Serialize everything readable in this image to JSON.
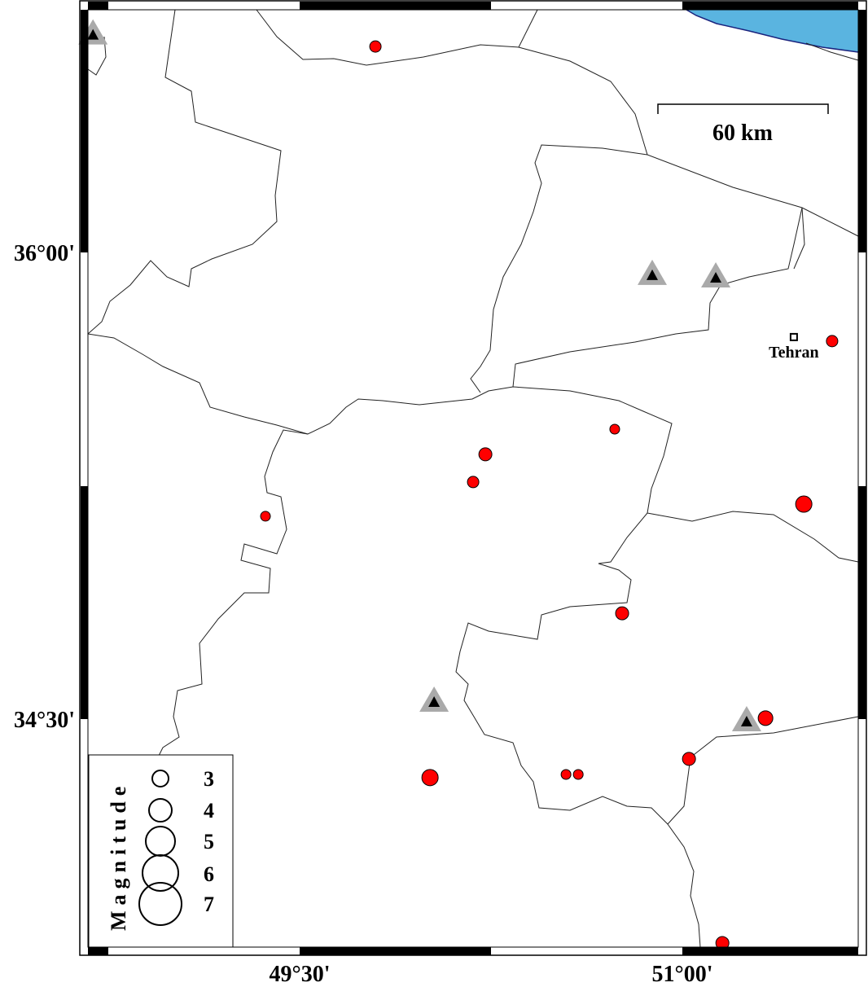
{
  "map": {
    "frame": {
      "lon_ticks": [
        {
          "lon": 49.5,
          "label": "49°30'"
        },
        {
          "lon": 51.0,
          "label": "51°00'"
        }
      ],
      "lat_ticks": [
        {
          "lat": 36.0,
          "label": "36°00'"
        },
        {
          "lat": 34.5,
          "label": "34°30'"
        }
      ]
    },
    "scale_bar": {
      "label": "60 km",
      "length_km": 60
    },
    "city": {
      "name": "Tehran",
      "lon": 51.437,
      "lat": 35.728
    },
    "colors": {
      "event": "#ff0000",
      "station_outer": "#aaaaaa",
      "station_inner": "#000000",
      "water": "#5ab4e0",
      "coast": "#1a237e"
    },
    "events": [
      {
        "lon": 49.797,
        "lat": 36.662,
        "mag": 2.25
      },
      {
        "lon": 51.587,
        "lat": 35.715,
        "mag": 2.25
      },
      {
        "lon": 50.735,
        "lat": 35.432,
        "mag": 2.0
      },
      {
        "lon": 50.228,
        "lat": 35.351,
        "mag": 2.5
      },
      {
        "lon": 50.18,
        "lat": 35.262,
        "mag": 2.25
      },
      {
        "lon": 49.366,
        "lat": 35.152,
        "mag": 2.0
      },
      {
        "lon": 51.476,
        "lat": 35.191,
        "mag": 3.0
      },
      {
        "lon": 50.764,
        "lat": 34.84,
        "mag": 2.5
      },
      {
        "lon": 50.011,
        "lat": 34.312,
        "mag": 3.0
      },
      {
        "lon": 50.544,
        "lat": 34.322,
        "mag": 2.0
      },
      {
        "lon": 50.592,
        "lat": 34.322,
        "mag": 2.0
      },
      {
        "lon": 51.026,
        "lat": 34.372,
        "mag": 2.5
      },
      {
        "lon": 51.326,
        "lat": 34.503,
        "mag": 2.75
      },
      {
        "lon": 51.157,
        "lat": 33.78,
        "mag": 2.5
      }
    ],
    "stations": [
      {
        "lon": 48.69,
        "lat": 36.7
      },
      {
        "lon": 50.882,
        "lat": 35.927
      },
      {
        "lon": 51.131,
        "lat": 35.919
      },
      {
        "lon": 50.027,
        "lat": 34.555
      },
      {
        "lon": 51.252,
        "lat": 34.492
      }
    ]
  },
  "legend": {
    "title": "Magnitude",
    "magnitudes": [
      "3",
      "4",
      "5",
      "6",
      "7"
    ]
  }
}
